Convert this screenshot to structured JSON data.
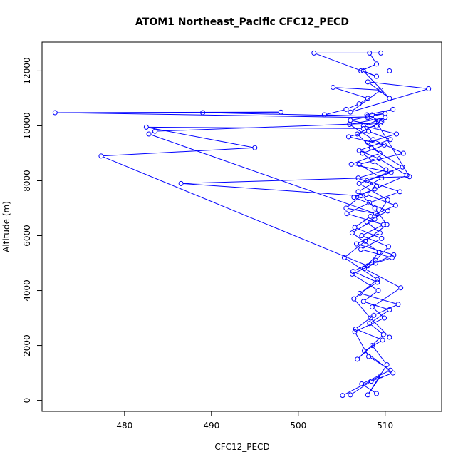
{
  "chart_data": {
    "type": "line",
    "title": "ATOM1 Northeast_Pacific CFC12_PECD",
    "xlabel": "CFC12_PECD",
    "ylabel": "Altitude (m)",
    "xlim": [
      470.5,
      516.5
    ],
    "ylim": [
      -400,
      13050
    ],
    "x_ticks": [
      480,
      490,
      500,
      510
    ],
    "y_ticks": [
      0,
      2000,
      4000,
      6000,
      8000,
      10000,
      12000
    ],
    "markers": "open-circle",
    "grid": false,
    "legend": "none",
    "colors": {
      "series": "#0000ff",
      "axis": "#000000",
      "background": "#ffffff"
    },
    "series": [
      {
        "x": [
          505.1,
          509.5,
          508.0,
          510.2,
          508.5,
          506.8,
          509.8,
          508.2,
          510.5,
          507.5,
          509.2,
          506.2,
          508.9,
          510.8,
          507.2,
          509.6,
          506.5,
          508.3,
          511.2,
          507.8,
          509.0,
          506.9,
          510.1,
          508.6,
          507.4,
          509.9,
          505.8,
          508.1,
          510.6,
          507.0,
          509.3,
          512.5,
          508.8,
          506.4,
          510.3,
          507.9,
          509.4,
          506.7,
          511.0,
          508.0,
          477.3,
          495.0,
          482.5,
          507.5,
          509.0,
          506.0,
          510.0,
          508.5,
          512.8,
          486.5,
          507.2,
          505.5,
          508.9,
          482.8,
          483.5,
          509.5,
          508.0,
          472.0,
          498.0,
          489.0,
          508.0,
          503.0,
          505.5,
          507.0,
          508.0,
          504.0,
          509.5,
          506.0,
          515.0,
          508.0,
          510.5,
          507.5,
          509.0,
          501.8,
          509.5,
          508.2,
          509.0,
          507.2,
          510.5
        ],
        "y": [
          180,
          900,
          200,
          1300,
          2000,
          1500,
          2400,
          2800,
          3300,
          3600,
          4000,
          4600,
          5000,
          5200,
          5500,
          5900,
          6300,
          6700,
          7100,
          7500,
          7800,
          8100,
          8400,
          8700,
          9000,
          9300,
          9600,
          9800,
          9500,
          9100,
          8800,
          8200,
          7700,
          7400,
          6900,
          6500,
          6100,
          5700,
          5300,
          4900,
          8900,
          9200,
          9950,
          9900,
          10000,
          10200,
          10450,
          10400,
          8150,
          7900,
          7450,
          7000,
          6800,
          9700,
          9800,
          10100,
          10300,
          10480,
          10500,
          10480,
          10350,
          10400,
          10600,
          10800,
          11000,
          11400,
          11300,
          10500,
          11350,
          11600,
          11000,
          12000,
          11800,
          12650,
          12650,
          12650,
          12250,
          12000,
          12000
        ]
      },
      {
        "x": [
          506.0,
          508.4,
          510.9,
          507.6,
          509.7,
          506.6,
          508.7,
          511.5,
          507.1,
          509.1,
          506.3,
          508.9,
          510.4,
          507.3,
          509.8,
          505.6,
          508.2,
          511.7,
          507.9,
          510.7,
          506.1,
          509.4,
          508.0,
          511.3,
          507.5,
          510.0,
          505.9,
          508.6,
          512.1,
          507.0,
          509.6,
          506.9,
          508.8,
          510.2,
          507.7,
          505.3,
          509.1,
          506.4,
          508.3,
          510.5
        ],
        "y": [
          200,
          700,
          1000,
          1800,
          2200,
          2600,
          3100,
          3500,
          3900,
          4300,
          4700,
          5100,
          5600,
          6000,
          6400,
          6800,
          7200,
          7600,
          8000,
          8300,
          8600,
          9000,
          9400,
          9700,
          10000,
          10300,
          10050,
          9500,
          9000,
          8600,
          8100,
          7600,
          7000,
          6400,
          5800,
          5200,
          4400,
          3700,
          3000,
          2300
        ]
      },
      {
        "x": [
          509.0,
          507.3,
          510.6,
          508.1,
          506.5,
          509.9,
          508.5,
          511.8,
          507.6,
          509.3,
          506.2,
          508.8,
          510.3,
          507.0,
          512.0,
          508.4,
          506.8,
          509.6,
          507.9,
          510.9
        ],
        "y": [
          250,
          600,
          1100,
          1600,
          2500,
          3000,
          3400,
          4100,
          4800,
          5400,
          6100,
          6600,
          7300,
          7900,
          8500,
          9200,
          9700,
          10150,
          10400,
          10600
        ]
      }
    ]
  }
}
